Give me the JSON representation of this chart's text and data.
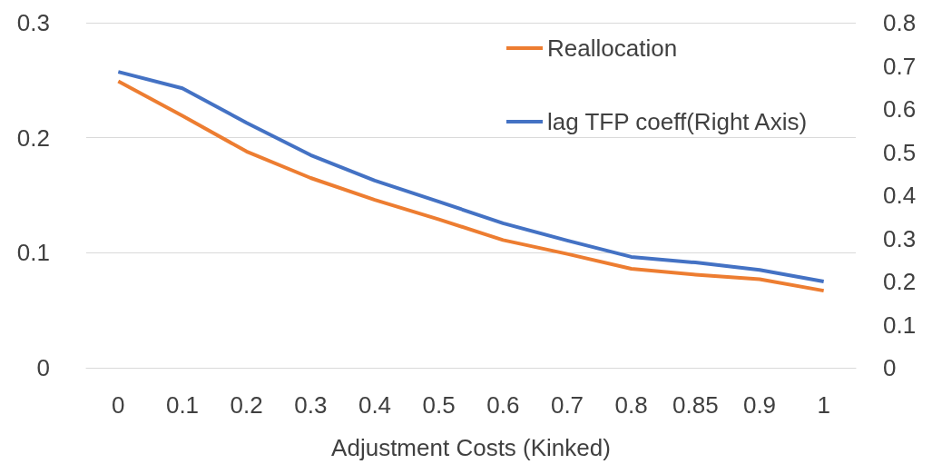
{
  "chart_data": {
    "type": "line",
    "xlabel": "Adjustment Costs (Kinked)",
    "categories": [
      "0",
      "0.1",
      "0.2",
      "0.3",
      "0.4",
      "0.5",
      "0.6",
      "0.7",
      "0.8",
      "0.85",
      "0.9",
      "1"
    ],
    "series": [
      {
        "name": "Reallocation",
        "color": "#ed7d31",
        "values": [
          0.249,
          0.219,
          0.188,
          0.165,
          0.146,
          0.129,
          0.111,
          0.099,
          0.086,
          0.081,
          0.077,
          0.067
        ]
      },
      {
        "name": "lag TFP coeff(Right Axis)",
        "color": "#4472c4",
        "axis": "y2",
        "values": [
          0.686,
          0.648,
          0.568,
          0.493,
          0.434,
          0.385,
          0.335,
          0.295,
          0.257,
          0.244,
          0.227,
          0.2
        ]
      }
    ],
    "ylim": [
      0,
      0.3
    ],
    "yticks": [
      0,
      0.1,
      0.2,
      0.3
    ],
    "y2lim": [
      0,
      0.8
    ],
    "y2ticks": [
      0,
      0.1,
      0.2,
      0.3,
      0.4,
      0.5,
      0.6,
      0.7,
      0.8
    ],
    "grid": "y",
    "legend": "top right",
    "marker": "none",
    "line_style": "solid"
  }
}
